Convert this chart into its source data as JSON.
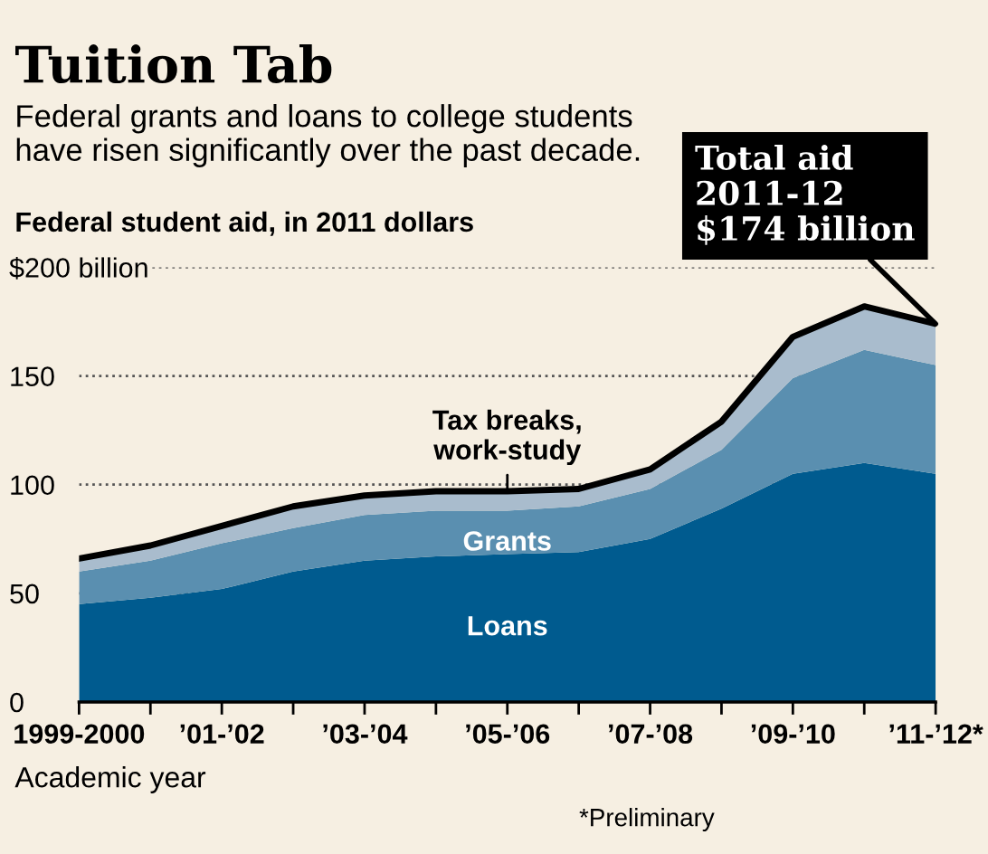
{
  "chart_data": {
    "type": "area",
    "stacked": true,
    "title": "Tuition Tab",
    "subtitle": "Federal grants and loans to college students\nhave risen significantly over the past decade.",
    "ylabel": "Federal student aid, in 2011 dollars",
    "xlabel": "Academic year",
    "categories": [
      "1999-2000",
      null,
      "’01-’02",
      null,
      "’03-’04",
      null,
      "’05-’06",
      null,
      "’07-’08",
      null,
      "’09-’10",
      null,
      "’11-’12*"
    ],
    "series": [
      {
        "name": "Loans",
        "color": "#005b8f",
        "values": [
          45,
          48,
          52,
          60,
          65,
          67,
          68,
          69,
          75,
          89,
          105,
          110,
          105
        ]
      },
      {
        "name": "Grants",
        "color": "#5a8fb0",
        "values": [
          15,
          17,
          21,
          20,
          21,
          21,
          20,
          21,
          23,
          27,
          44,
          52,
          50
        ]
      },
      {
        "name": "Tax breaks,\nwork-study",
        "color": "#a9bccd",
        "values": [
          6,
          7,
          8,
          10,
          9,
          9,
          9,
          8,
          9,
          13,
          19,
          20,
          19
        ]
      }
    ],
    "ylim": [
      0,
      200
    ],
    "yticks": [
      0,
      50,
      100,
      150,
      {
        "value": 200,
        "label": "$200 billion"
      }
    ],
    "grid": "y",
    "annotations": [
      {
        "text": "Total aid\n2011-12\n$174 billion",
        "x": "’11-’12*",
        "y": 174
      },
      "*Preliminary"
    ]
  }
}
